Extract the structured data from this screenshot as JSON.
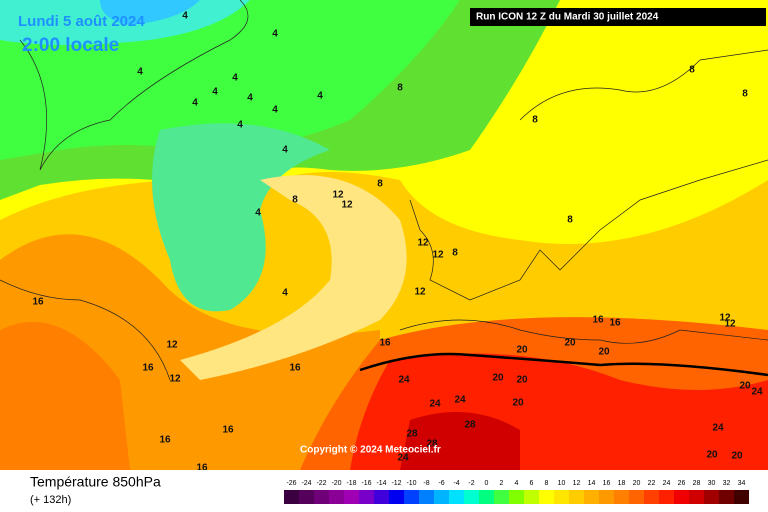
{
  "header": {
    "date": "Lundi 5 août 2024",
    "time": "2:00 locale",
    "run": "Run ICON 12 Z du Mardi 30 juillet 2024"
  },
  "copyright": "Copyright © 2024 Meteociel.fr",
  "footer": {
    "title": "Température 850hPa",
    "lead": "(+ 132h)"
  },
  "color_scale": {
    "ticks": [
      -26,
      -24,
      -22,
      -20,
      -18,
      -16,
      -14,
      -12,
      -10,
      -8,
      -6,
      -4,
      -2,
      0,
      2,
      4,
      6,
      8,
      10,
      12,
      14,
      16,
      18,
      20,
      22,
      24,
      26,
      28,
      30,
      32,
      34
    ],
    "colors": [
      "#3a0040",
      "#55005a",
      "#700078",
      "#8a0096",
      "#a000b4",
      "#7800c8",
      "#4000dc",
      "#0000f0",
      "#0040ff",
      "#0080ff",
      "#00b4ff",
      "#00e0ff",
      "#00ffd0",
      "#00ff80",
      "#40ff40",
      "#80ff00",
      "#c0ff00",
      "#ffff00",
      "#ffe600",
      "#ffcc00",
      "#ffb000",
      "#ff9900",
      "#ff8000",
      "#ff6400",
      "#ff4000",
      "#ff2000",
      "#f00000",
      "#d00000",
      "#a00000",
      "#700000",
      "#400000"
    ]
  },
  "contour_labels": [
    4,
    4,
    4,
    4,
    4,
    4,
    4,
    4,
    8,
    4,
    4,
    4,
    8,
    12,
    12,
    8,
    12,
    12,
    12,
    8,
    4,
    4,
    8,
    8,
    8,
    8,
    16,
    16,
    16,
    16,
    12,
    12,
    20,
    20,
    20,
    20,
    20,
    24,
    24,
    24,
    28,
    28,
    24,
    28,
    20,
    24,
    24,
    20,
    20,
    16,
    16,
    16,
    16,
    16,
    12,
    12,
    20
  ]
}
